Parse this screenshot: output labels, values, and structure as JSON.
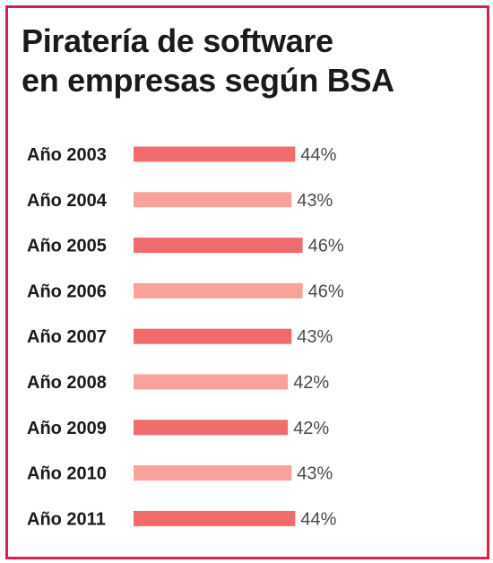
{
  "chart_data": {
    "type": "bar",
    "orientation": "horizontal",
    "title_lines": [
      "Piratería de software",
      "en empresas según BSA"
    ],
    "categories": [
      "Año 2003",
      "Año 2004",
      "Año 2005",
      "Año 2006",
      "Año 2007",
      "Año 2008",
      "Año 2009",
      "Año 2010",
      "Año 2011"
    ],
    "values": [
      44,
      43,
      46,
      46,
      43,
      42,
      42,
      43,
      44
    ],
    "value_labels": [
      "44%",
      "43%",
      "46%",
      "46%",
      "43%",
      "42%",
      "42%",
      "43%",
      "44%"
    ],
    "unit": "%",
    "bar_colors": [
      "#f06b6b",
      "#f7a29a"
    ],
    "border_color": "#d9214e",
    "grid": false,
    "legend": "none"
  }
}
